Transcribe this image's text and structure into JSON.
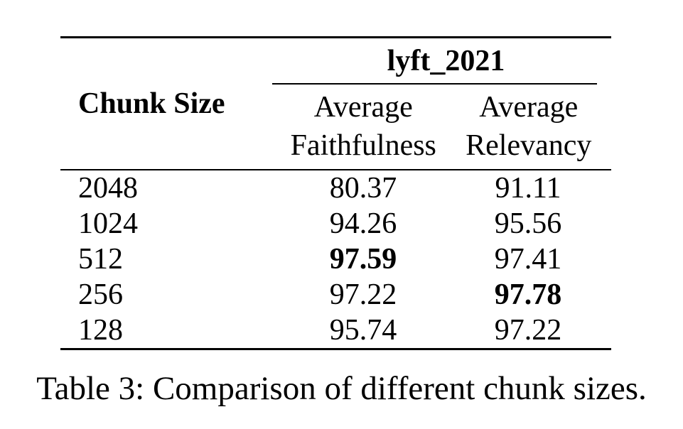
{
  "table": {
    "chunk_header": "Chunk Size",
    "group_header": "lyft_2021",
    "columns": [
      {
        "line1": "Average",
        "line2": "Faithfulness"
      },
      {
        "line1": "Average",
        "line2": "Relevancy"
      }
    ],
    "rows": [
      {
        "chunk": "2048",
        "faithfulness": "80.37",
        "relevancy": "91.11",
        "bold": []
      },
      {
        "chunk": "1024",
        "faithfulness": "94.26",
        "relevancy": "95.56",
        "bold": []
      },
      {
        "chunk": "512",
        "faithfulness": "97.59",
        "relevancy": "97.41",
        "bold": [
          "faithfulness"
        ]
      },
      {
        "chunk": "256",
        "faithfulness": "97.22",
        "relevancy": "97.78",
        "bold": [
          "relevancy"
        ]
      },
      {
        "chunk": "128",
        "faithfulness": "95.74",
        "relevancy": "97.22",
        "bold": []
      }
    ]
  },
  "caption": "Table 3: Comparison of different chunk sizes."
}
